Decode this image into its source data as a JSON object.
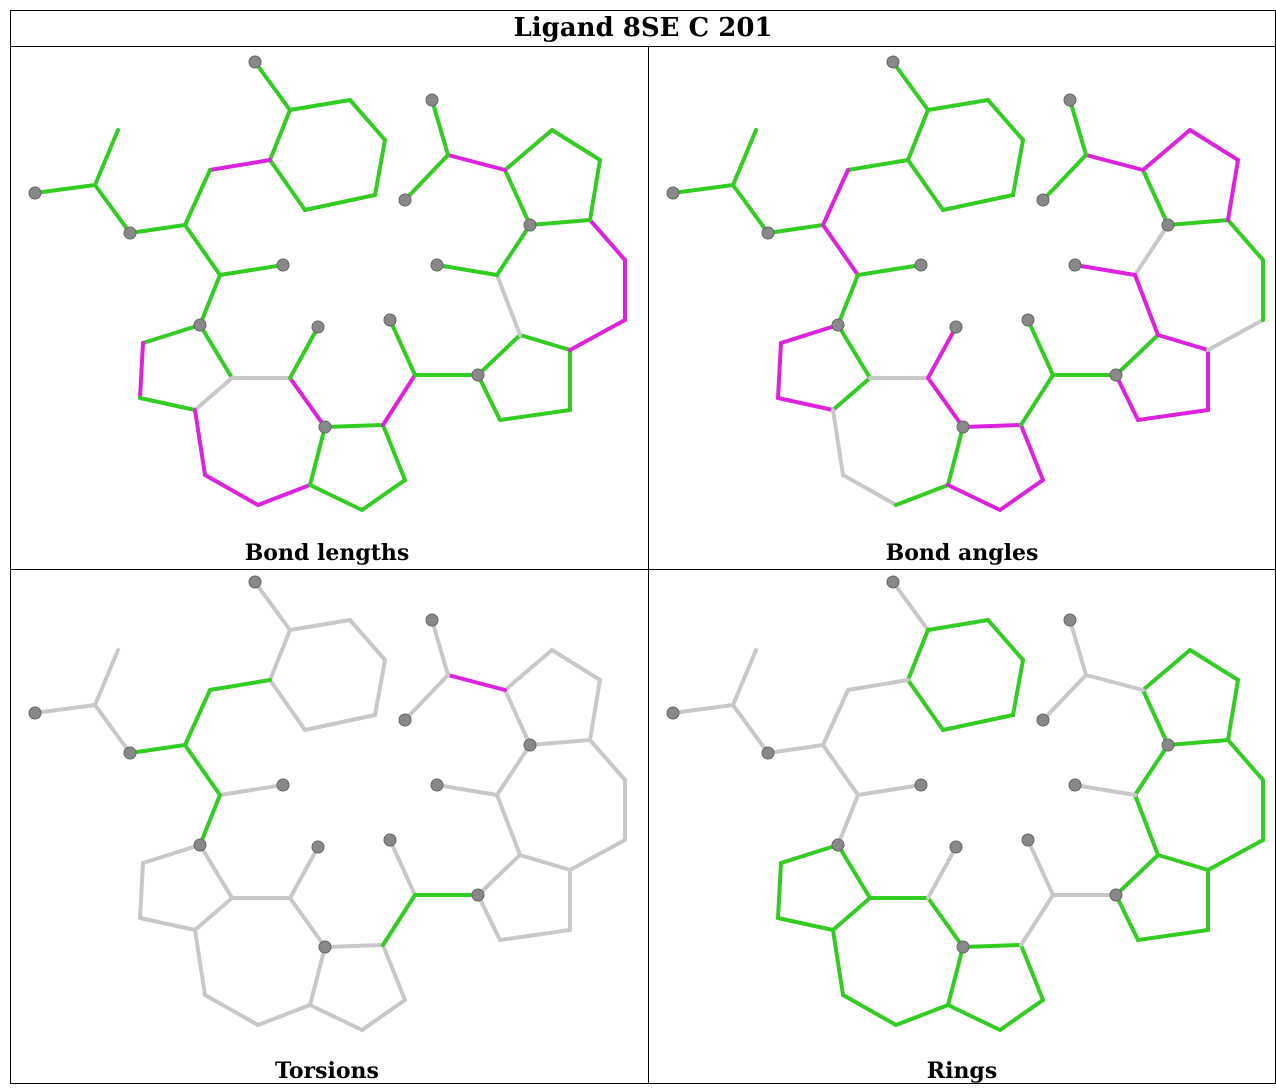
{
  "header": {
    "title": "Ligand 8SE C 201"
  },
  "panels": [
    {
      "caption": "Bond lengths"
    },
    {
      "caption": "Bond angles"
    },
    {
      "caption": "Torsions"
    },
    {
      "caption": "Rings"
    }
  ]
}
